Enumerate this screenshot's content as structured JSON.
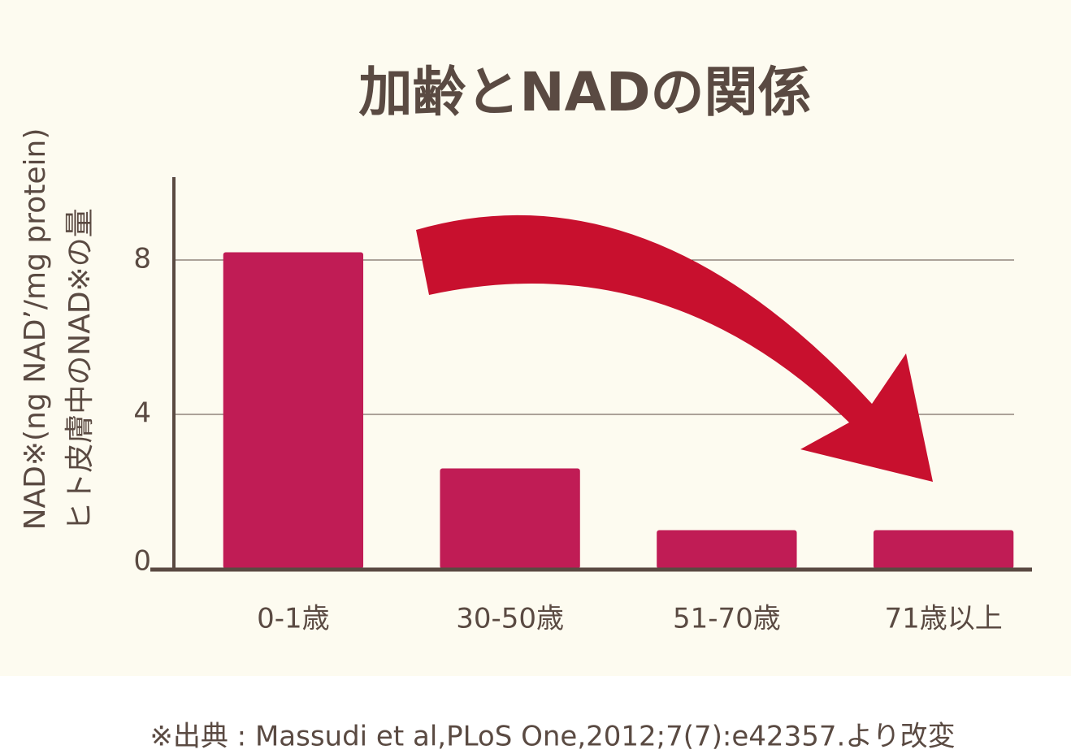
{
  "chart_data": {
    "type": "bar",
    "title": "加齢とNADの関係",
    "y_label_lines": [
      "NAD※(ng NAD’/mg protein)",
      "ヒト皮膚中のNAD※の量"
    ],
    "categories": [
      "0-1歳",
      "30-50歳",
      "51-70歳",
      "71歳以上"
    ],
    "values": [
      8.2,
      2.6,
      1.0,
      1.0
    ],
    "color": "#c01c55",
    "ylim": [
      0,
      10
    ],
    "yticks": [
      0,
      4,
      8
    ],
    "grid": true,
    "source": "※出典 : Massudi et al,PLoS One,2012;7(7):e42357.より改変"
  }
}
